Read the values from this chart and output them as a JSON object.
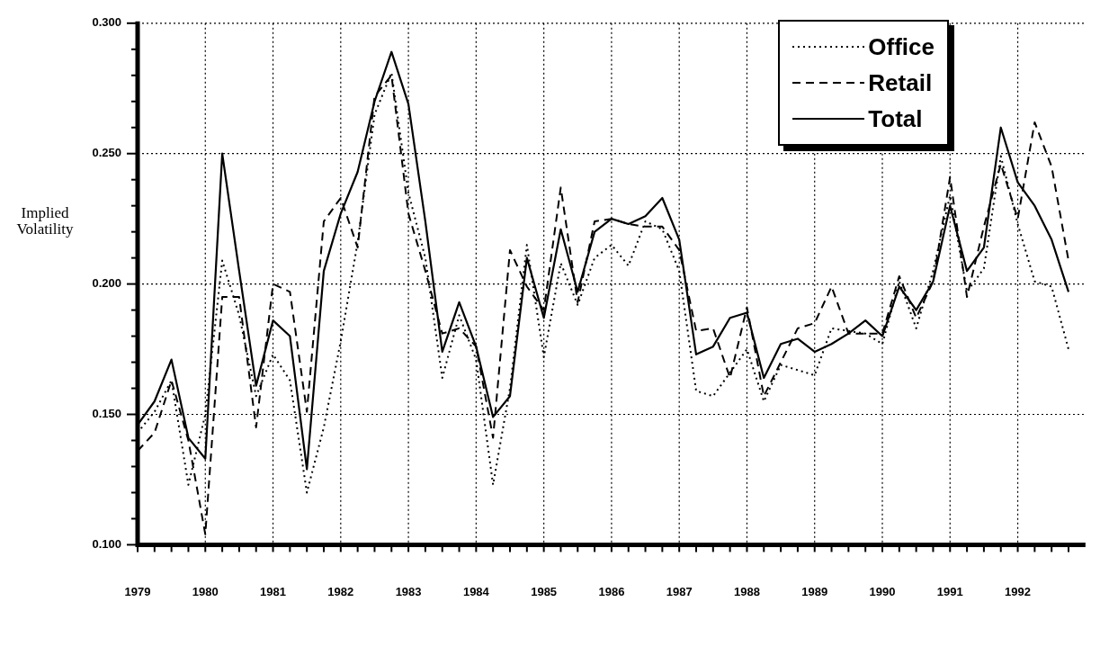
{
  "chart_data": {
    "type": "line",
    "ylabel": "Implied Volatility",
    "x": [
      1979,
      1979.25,
      1979.5,
      1979.75,
      1980,
      1980.25,
      1980.5,
      1980.75,
      1981,
      1981.25,
      1981.5,
      1981.75,
      1982,
      1982.25,
      1982.5,
      1982.75,
      1983,
      1983.25,
      1983.5,
      1983.75,
      1984,
      1984.25,
      1984.5,
      1984.75,
      1985,
      1985.25,
      1985.5,
      1985.75,
      1986,
      1986.25,
      1986.5,
      1986.75,
      1987,
      1987.25,
      1987.5,
      1987.75,
      1988,
      1988.25,
      1988.5,
      1988.75,
      1989,
      1989.25,
      1989.5,
      1989.75,
      1990,
      1990.25,
      1990.5,
      1990.75,
      1991,
      1991.25,
      1991.5,
      1991.75,
      1992,
      1992.25,
      1992.5,
      1992.75
    ],
    "series": [
      {
        "name": "Office",
        "color": "#000000",
        "line_style": "dotted",
        "values": [
          0.143,
          0.151,
          0.163,
          0.123,
          0.15,
          0.209,
          0.188,
          0.157,
          0.173,
          0.163,
          0.12,
          0.145,
          0.178,
          0.216,
          0.265,
          0.281,
          0.235,
          0.21,
          0.164,
          0.188,
          0.171,
          0.123,
          0.16,
          0.215,
          0.172,
          0.208,
          0.192,
          0.21,
          0.215,
          0.207,
          0.224,
          0.221,
          0.205,
          0.159,
          0.157,
          0.166,
          0.175,
          0.155,
          0.169,
          0.167,
          0.165,
          0.183,
          0.182,
          0.181,
          0.177,
          0.201,
          0.183,
          0.205,
          0.234,
          0.197,
          0.206,
          0.249,
          0.223,
          0.201,
          0.199,
          0.175
        ]
      },
      {
        "name": "Retail",
        "color": "#000000",
        "line_style": "dashed",
        "values": [
          0.136,
          0.143,
          0.163,
          0.14,
          0.104,
          0.195,
          0.195,
          0.145,
          0.2,
          0.197,
          0.151,
          0.224,
          0.233,
          0.214,
          0.272,
          0.28,
          0.227,
          0.205,
          0.181,
          0.183,
          0.176,
          0.141,
          0.213,
          0.199,
          0.19,
          0.237,
          0.193,
          0.224,
          0.225,
          0.223,
          0.222,
          0.222,
          0.213,
          0.182,
          0.183,
          0.164,
          0.191,
          0.157,
          0.17,
          0.183,
          0.185,
          0.199,
          0.181,
          0.181,
          0.181,
          0.203,
          0.187,
          0.201,
          0.241,
          0.195,
          0.222,
          0.246,
          0.225,
          0.262,
          0.245,
          0.209
        ]
      },
      {
        "name": "Total",
        "color": "#000000",
        "line_style": "solid",
        "values": [
          0.146,
          0.155,
          0.171,
          0.141,
          0.133,
          0.25,
          0.205,
          0.161,
          0.186,
          0.18,
          0.129,
          0.205,
          0.227,
          0.243,
          0.27,
          0.289,
          0.269,
          0.224,
          0.174,
          0.193,
          0.176,
          0.149,
          0.157,
          0.21,
          0.187,
          0.221,
          0.197,
          0.22,
          0.225,
          0.223,
          0.226,
          0.233,
          0.217,
          0.173,
          0.176,
          0.187,
          0.189,
          0.164,
          0.177,
          0.179,
          0.174,
          0.177,
          0.181,
          0.186,
          0.18,
          0.199,
          0.19,
          0.201,
          0.23,
          0.205,
          0.214,
          0.26,
          0.239,
          0.23,
          0.217,
          0.197
        ]
      }
    ],
    "xlim": [
      1979,
      1993
    ],
    "xticks": [
      1979,
      {
        "value": 1979.25,
        "label": null
      },
      {
        "value": 1979.5,
        "label": null
      },
      {
        "value": 1979.75,
        "label": null
      },
      1980,
      {
        "value": 1980.25,
        "label": null
      },
      {
        "value": 1980.5,
        "label": null
      },
      {
        "value": 1980.75,
        "label": null
      },
      1981,
      {
        "value": 1981.25,
        "label": null
      },
      {
        "value": 1981.5,
        "label": null
      },
      {
        "value": 1981.75,
        "label": null
      },
      1982,
      {
        "value": 1982.25,
        "label": null
      },
      {
        "value": 1982.5,
        "label": null
      },
      {
        "value": 1982.75,
        "label": null
      },
      1983,
      {
        "value": 1983.25,
        "label": null
      },
      {
        "value": 1983.5,
        "label": null
      },
      {
        "value": 1983.75,
        "label": null
      },
      1984,
      {
        "value": 1984.25,
        "label": null
      },
      {
        "value": 1984.5,
        "label": null
      },
      {
        "value": 1984.75,
        "label": null
      },
      1985,
      {
        "value": 1985.25,
        "label": null
      },
      {
        "value": 1985.5,
        "label": null
      },
      {
        "value": 1985.75,
        "label": null
      },
      1986,
      {
        "value": 1986.25,
        "label": null
      },
      {
        "value": 1986.5,
        "label": null
      },
      {
        "value": 1986.75,
        "label": null
      },
      1987,
      {
        "value": 1987.25,
        "label": null
      },
      {
        "value": 1987.5,
        "label": null
      },
      {
        "value": 1987.75,
        "label": null
      },
      1988,
      {
        "value": 1988.25,
        "label": null
      },
      {
        "value": 1988.5,
        "label": null
      },
      {
        "value": 1988.75,
        "label": null
      },
      1989,
      {
        "value": 1989.25,
        "label": null
      },
      {
        "value": 1989.5,
        "label": null
      },
      {
        "value": 1989.75,
        "label": null
      },
      1990,
      {
        "value": 1990.25,
        "label": null
      },
      {
        "value": 1990.5,
        "label": null
      },
      {
        "value": 1990.75,
        "label": null
      },
      1991,
      {
        "value": 1991.25,
        "label": null
      },
      {
        "value": 1991.5,
        "label": null
      },
      {
        "value": 1991.75,
        "label": null
      },
      1992,
      {
        "value": 1992.25,
        "label": null
      },
      {
        "value": 1992.5,
        "label": null
      },
      {
        "value": 1992.75,
        "label": null
      }
    ],
    "ylim": [
      0.1,
      0.3
    ],
    "yticks": [
      {
        "value": 0.1,
        "label": "0.100"
      },
      {
        "value": 0.11,
        "label": null
      },
      {
        "value": 0.12,
        "label": null
      },
      {
        "value": 0.13,
        "label": null
      },
      {
        "value": 0.14,
        "label": null
      },
      {
        "value": 0.15,
        "label": "0.150"
      },
      {
        "value": 0.16,
        "label": null
      },
      {
        "value": 0.17,
        "label": null
      },
      {
        "value": 0.18,
        "label": null
      },
      {
        "value": 0.19,
        "label": null
      },
      {
        "value": 0.2,
        "label": "0.200"
      },
      {
        "value": 0.21,
        "label": null
      },
      {
        "value": 0.22,
        "label": null
      },
      {
        "value": 0.23,
        "label": null
      },
      {
        "value": 0.24,
        "label": null
      },
      {
        "value": 0.25,
        "label": "0.250"
      },
      {
        "value": 0.26,
        "label": null
      },
      {
        "value": 0.27,
        "label": null
      },
      {
        "value": 0.28,
        "label": null
      },
      {
        "value": 0.29,
        "label": null
      },
      {
        "value": 0.3,
        "label": "0.300"
      }
    ],
    "grid": true,
    "legend": "top right",
    "marker": "none"
  }
}
